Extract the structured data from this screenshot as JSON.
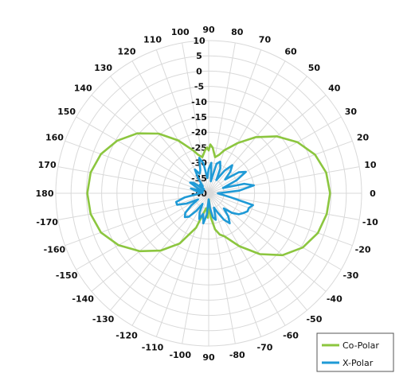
{
  "chart_data": {
    "type": "polar-line",
    "title": "",
    "angle_ticks": [
      90,
      80,
      70,
      60,
      50,
      40,
      30,
      20,
      10,
      0,
      -10,
      -20,
      -30,
      -40,
      -50,
      -60,
      -70,
      -80,
      90,
      -100,
      -110,
      -120,
      -130,
      -140,
      -150,
      -160,
      -170,
      180,
      170,
      160,
      150,
      140,
      130,
      120,
      110,
      100
    ],
    "angle_tick_labels": [
      "90",
      "80",
      "70",
      "60",
      "50",
      "40",
      "30",
      "20",
      "10",
      "0",
      "-10",
      "-20",
      "-30",
      "-40",
      "-50",
      "-60",
      "-70",
      "-80",
      "90",
      "-100",
      "-110",
      "-120",
      "-130",
      "-140",
      "-150",
      "-160",
      "-170",
      "180",
      "170",
      "160",
      "150",
      "140",
      "130",
      "120",
      "110",
      "100"
    ],
    "angle_direction": "counterclockwise",
    "zero_angle_position": "right",
    "radial_range": [
      -40,
      10
    ],
    "radial_ticks": [
      10,
      5,
      0,
      -5,
      -10,
      -15,
      -20,
      -25,
      -30,
      -35,
      -40
    ],
    "radial_tick_labels": [
      "10",
      "5",
      "0",
      "-5",
      "-10",
      "-15",
      "-20",
      "-25",
      "-30",
      "-35",
      "-40"
    ],
    "grid": true,
    "legend_position": "bottom-right",
    "series": [
      {
        "name": "Co-Polar",
        "color": "#8cc63f",
        "angles": [
          0,
          10,
          20,
          30,
          40,
          50,
          60,
          70,
          75,
          80,
          85,
          88,
          90,
          92,
          95,
          100,
          105,
          110,
          120,
          130,
          140,
          150,
          160,
          170,
          180,
          -170,
          -160,
          -150,
          -140,
          -130,
          -120,
          -110,
          -105,
          -100,
          -95,
          -92,
          -90,
          -88,
          -85,
          -80,
          -75,
          -70,
          -60,
          -50,
          -40,
          -30,
          -20,
          -10
        ],
        "values": [
          -0.3,
          -1,
          -3,
          -6.5,
          -11,
          -16,
          -21,
          -25,
          -27,
          -28,
          -25,
          -24,
          -26,
          -25,
          -26,
          -28,
          -27,
          -25,
          -20,
          -14.5,
          -9.5,
          -5.5,
          -2.5,
          -0.8,
          -0.3,
          -0.8,
          -2.5,
          -6,
          -10.5,
          -15.5,
          -21,
          -28,
          -33,
          -35,
          -34,
          -32,
          -35,
          -38,
          -32,
          -28,
          -26,
          -25,
          -20,
          -14,
          -8.5,
          -4.5,
          -2,
          -0.8
        ]
      },
      {
        "name": "X-Polar",
        "color": "#1f9ad6",
        "angles": [
          0,
          5,
          10,
          15,
          20,
          25,
          30,
          35,
          40,
          45,
          50,
          55,
          60,
          65,
          70,
          75,
          80,
          85,
          90,
          95,
          100,
          105,
          110,
          115,
          120,
          125,
          130,
          135,
          140,
          145,
          150,
          155,
          160,
          165,
          170,
          175,
          180,
          -175,
          -170,
          -165,
          -160,
          -155,
          -150,
          -145,
          -140,
          -135,
          -130,
          -125,
          -120,
          -115,
          -110,
          -105,
          -100,
          -95,
          -90,
          -85,
          -80,
          -75,
          -70,
          -65,
          -60,
          -55,
          -50,
          -45,
          -40,
          -35,
          -30,
          -25,
          -20,
          -15,
          -10,
          -5
        ],
        "values": [
          -37,
          -30,
          -25,
          -28,
          -35,
          -30,
          -26,
          -28,
          -33,
          -30,
          -28,
          -31,
          -35,
          -31,
          -29,
          -30,
          -36,
          -30,
          -32,
          -35,
          -30,
          -28,
          -32,
          -33,
          -31,
          -34,
          -37,
          -36,
          -38,
          -34,
          -33,
          -36,
          -38,
          -34,
          -36,
          -38,
          -37,
          -36,
          -32,
          -29,
          -29,
          -32,
          -36,
          -33,
          -30,
          -29,
          -30,
          -33,
          -36,
          -33,
          -31,
          -33,
          -30,
          -33,
          -38,
          -35,
          -32,
          -31,
          -35,
          -33,
          -30,
          -28,
          -30,
          -33,
          -30,
          -28,
          -27,
          -26,
          -26,
          -25,
          -33,
          -36
        ]
      }
    ]
  }
}
